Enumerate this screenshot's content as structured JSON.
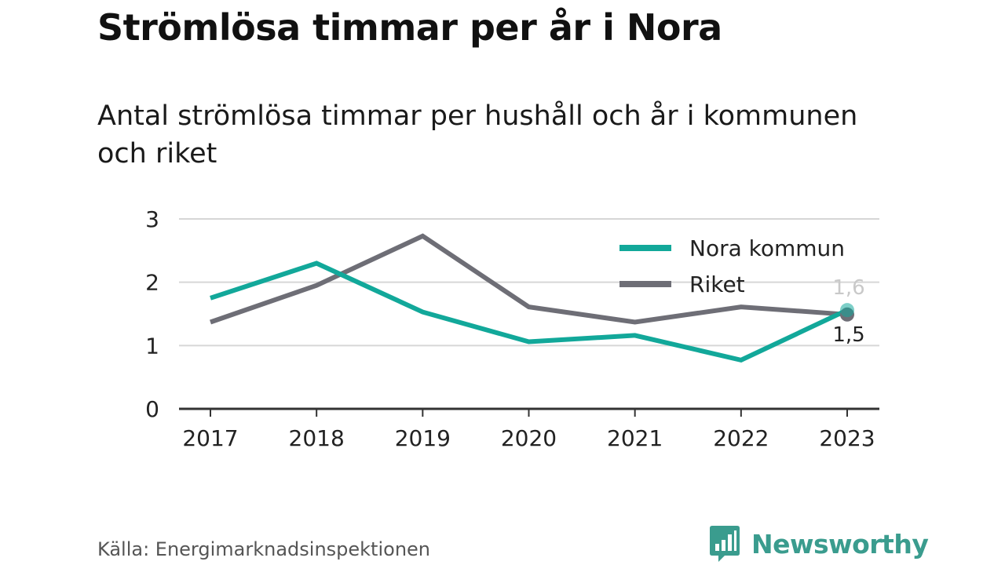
{
  "title": "Strömlösa timmar per år i Nora",
  "subtitle": "Antal strömlösa timmar per hushåll och år i kommunen och riket",
  "source": "Källa: Energimarknadsinspektionen",
  "brand": {
    "name": "Newsworthy",
    "logo_icon": "bar-chart-speech-bubble-icon"
  },
  "colors": {
    "nora": "#12a89a",
    "riket": "#6e6e76",
    "grid": "#d6d6d6",
    "axis": "#333333",
    "brand": "#3a9c8e"
  },
  "chart_data": {
    "type": "line",
    "x": [
      "2017",
      "2018",
      "2019",
      "2020",
      "2021",
      "2022",
      "2023"
    ],
    "ylim": [
      0,
      3
    ],
    "yticks": [
      "0",
      "1",
      "2",
      "3"
    ],
    "grid": true,
    "legend_placement": "top-right",
    "series": [
      {
        "name": "Nora kommun",
        "values": [
          1.75,
          2.3,
          1.53,
          1.06,
          1.16,
          0.77,
          1.56
        ],
        "end_label": "1,6"
      },
      {
        "name": "Riket",
        "values": [
          1.37,
          1.95,
          2.73,
          1.61,
          1.37,
          1.61,
          1.49
        ],
        "end_label": "1,5"
      }
    ]
  }
}
